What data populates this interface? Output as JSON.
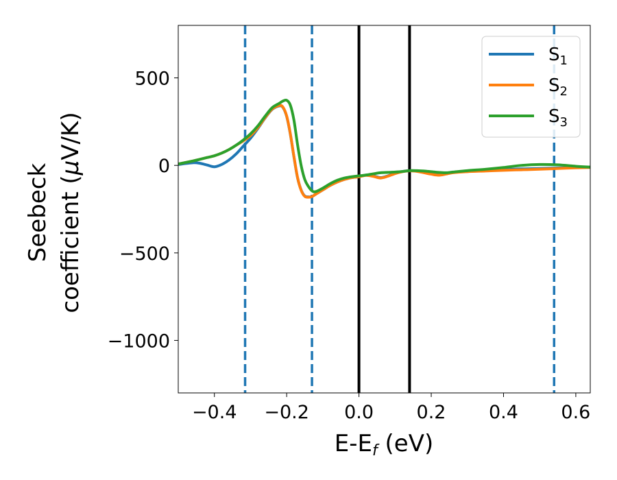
{
  "chart_data": {
    "type": "line",
    "xlabel": "E-E",
    "xlabel_sub": "f",
    "xlabel_unit": " (eV)",
    "ylabel_line1": "Seebeck",
    "ylabel_line2": "coefficient  (",
    "ylabel_mu": "μ",
    "ylabel_unit": "V/K)",
    "xlim": [
      -0.5,
      0.64
    ],
    "ylim": [
      -1300,
      800
    ],
    "xticks": [
      -0.4,
      -0.2,
      0.0,
      0.2,
      0.4,
      0.6
    ],
    "xtick_labels": [
      "−0.4",
      "−0.2",
      "0.0",
      "0.2",
      "0.4",
      "0.6"
    ],
    "yticks": [
      500,
      0,
      -500,
      -1000
    ],
    "ytick_labels": [
      "500",
      "0",
      "−500",
      "−1000"
    ],
    "grid": false,
    "legend_position": "top-right",
    "series": [
      {
        "name": "S",
        "sub": "1",
        "color": "#1f77b4",
        "x": [
          -0.5,
          -0.46,
          -0.44,
          -0.42,
          -0.4,
          -0.38,
          -0.36,
          -0.34,
          -0.32,
          -0.3,
          -0.28,
          -0.26,
          -0.24,
          -0.22,
          -0.21,
          -0.2,
          -0.19,
          -0.18,
          -0.17,
          -0.16,
          -0.15,
          -0.14,
          -0.13,
          -0.12,
          -0.1,
          -0.08,
          -0.06,
          -0.04,
          -0.02,
          0.0,
          0.02,
          0.04,
          0.06,
          0.08,
          0.1,
          0.12,
          0.14,
          0.16,
          0.18,
          0.2,
          0.22,
          0.24,
          0.26,
          0.3,
          0.35,
          0.4,
          0.45,
          0.5,
          0.55,
          0.6,
          0.64
        ],
        "y": [
          5,
          15,
          12,
          2,
          -8,
          5,
          30,
          65,
          110,
          155,
          210,
          270,
          320,
          340,
          330,
          280,
          180,
          50,
          -70,
          -140,
          -175,
          -180,
          -178,
          -165,
          -140,
          -115,
          -95,
          -80,
          -70,
          -65,
          -55,
          -60,
          -70,
          -60,
          -45,
          -35,
          -30,
          -32,
          -38,
          -45,
          -52,
          -48,
          -40,
          -35,
          -30,
          -25,
          -20,
          -18,
          -15,
          -12,
          -10
        ]
      },
      {
        "name": "S",
        "sub": "2",
        "color": "#ff7f0e",
        "x": [
          -0.5,
          -0.46,
          -0.44,
          -0.42,
          -0.4,
          -0.38,
          -0.36,
          -0.34,
          -0.32,
          -0.3,
          -0.28,
          -0.26,
          -0.24,
          -0.22,
          -0.21,
          -0.2,
          -0.19,
          -0.18,
          -0.17,
          -0.16,
          -0.15,
          -0.14,
          -0.13,
          -0.12,
          -0.1,
          -0.08,
          -0.06,
          -0.04,
          -0.02,
          0.0,
          0.02,
          0.04,
          0.06,
          0.08,
          0.1,
          0.12,
          0.14,
          0.16,
          0.18,
          0.2,
          0.22,
          0.24,
          0.26,
          0.3,
          0.35,
          0.4,
          0.45,
          0.5,
          0.55,
          0.6,
          0.64
        ],
        "y": [
          8,
          25,
          35,
          45,
          55,
          70,
          90,
          115,
          140,
          170,
          215,
          272,
          322,
          342,
          332,
          282,
          182,
          52,
          -68,
          -142,
          -177,
          -182,
          -178,
          -165,
          -140,
          -115,
          -95,
          -80,
          -70,
          -65,
          -57,
          -63,
          -72,
          -62,
          -47,
          -36,
          -31,
          -34,
          -42,
          -50,
          -56,
          -50,
          -42,
          -36,
          -32,
          -28,
          -25,
          -22,
          -18,
          -14,
          -12
        ]
      },
      {
        "name": "S",
        "sub": "3",
        "color": "#2ca02c",
        "x": [
          -0.5,
          -0.46,
          -0.44,
          -0.42,
          -0.4,
          -0.38,
          -0.36,
          -0.34,
          -0.32,
          -0.3,
          -0.28,
          -0.26,
          -0.24,
          -0.22,
          -0.21,
          -0.2,
          -0.19,
          -0.18,
          -0.17,
          -0.16,
          -0.15,
          -0.14,
          -0.13,
          -0.12,
          -0.1,
          -0.08,
          -0.06,
          -0.04,
          -0.02,
          0.0,
          0.02,
          0.04,
          0.06,
          0.08,
          0.1,
          0.12,
          0.14,
          0.16,
          0.18,
          0.2,
          0.22,
          0.24,
          0.26,
          0.3,
          0.35,
          0.4,
          0.45,
          0.5,
          0.55,
          0.6,
          0.64
        ],
        "y": [
          8,
          25,
          35,
          45,
          55,
          70,
          90,
          115,
          145,
          180,
          225,
          280,
          330,
          355,
          368,
          372,
          345,
          260,
          120,
          0,
          -80,
          -120,
          -145,
          -150,
          -130,
          -105,
          -85,
          -72,
          -65,
          -60,
          -55,
          -48,
          -42,
          -40,
          -38,
          -35,
          -30,
          -30,
          -32,
          -36,
          -40,
          -42,
          -38,
          -30,
          -22,
          -12,
          0,
          5,
          3,
          -5,
          -10
        ]
      }
    ],
    "vlines": [
      {
        "x": -0.315,
        "style": "dashed",
        "color": "#1f77b4"
      },
      {
        "x": -0.13,
        "style": "dashed",
        "color": "#1f77b4"
      },
      {
        "x": 0.0,
        "style": "solid",
        "color": "#000000"
      },
      {
        "x": 0.14,
        "style": "solid",
        "color": "#000000"
      },
      {
        "x": 0.54,
        "style": "dashed",
        "color": "#1f77b4"
      }
    ]
  }
}
